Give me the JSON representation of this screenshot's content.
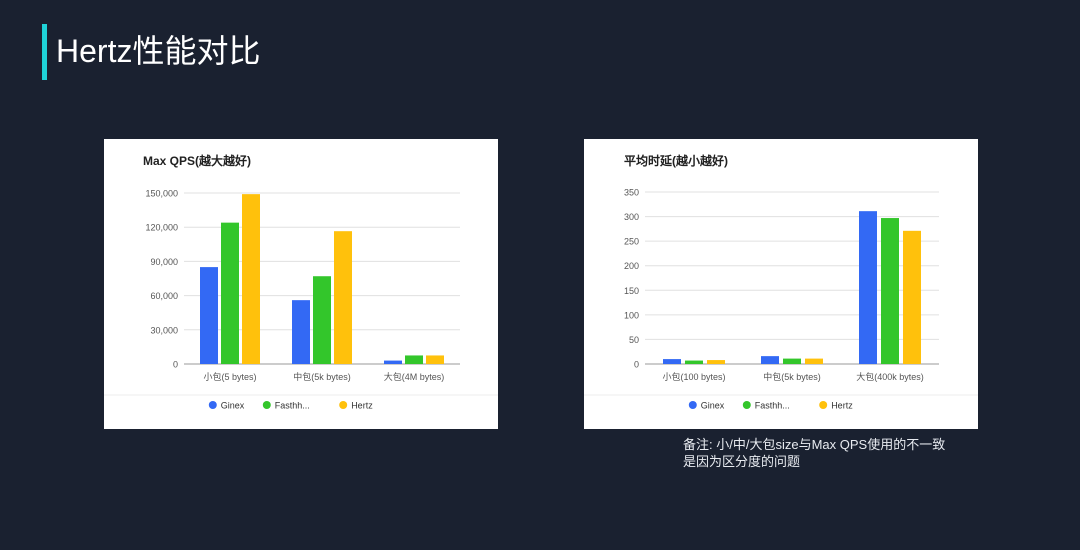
{
  "slide": {
    "title": "Hertz性能对比",
    "note_lines": [
      "备注: 小/中/大包size与Max QPS使用的不一致",
      "是因为区分度的问题"
    ]
  },
  "colors": {
    "Ginex": "#3369f4",
    "Fasthh...": "#33c62b",
    "Hertz": "#ffc10c",
    "background": "#1a2130",
    "accent": "#1fd3d8"
  },
  "chart_data": [
    {
      "type": "bar",
      "title": "Max QPS(越大越好)",
      "categories": [
        "小包(5 bytes)",
        "中包(5k bytes)",
        "大包(4M bytes)"
      ],
      "series": [
        {
          "name": "Ginex",
          "values": [
            85000,
            56000,
            3000
          ]
        },
        {
          "name": "Fasthh...",
          "values": [
            124000,
            77000,
            7500
          ]
        },
        {
          "name": "Hertz",
          "values": [
            149000,
            116500,
            7500
          ]
        }
      ],
      "yticks": [
        "0",
        "30,000",
        "60,000",
        "90,000",
        "120,000",
        "150,000"
      ],
      "ylim": [
        0,
        150000
      ],
      "grid": true,
      "legend": "bottom"
    },
    {
      "type": "bar",
      "title": "平均时延(越小越好)",
      "categories": [
        "小包(100 bytes)",
        "中包(5k bytes)",
        "大包(400k bytes)"
      ],
      "series": [
        {
          "name": "Ginex",
          "values": [
            10,
            16,
            311
          ]
        },
        {
          "name": "Fasthh...",
          "values": [
            7,
            11,
            297
          ]
        },
        {
          "name": "Hertz",
          "values": [
            8,
            11,
            271
          ]
        }
      ],
      "yticks": [
        "0",
        "50",
        "100",
        "150",
        "200",
        "250",
        "300",
        "350"
      ],
      "ylim": [
        0,
        350
      ],
      "grid": true,
      "legend": "bottom"
    }
  ]
}
